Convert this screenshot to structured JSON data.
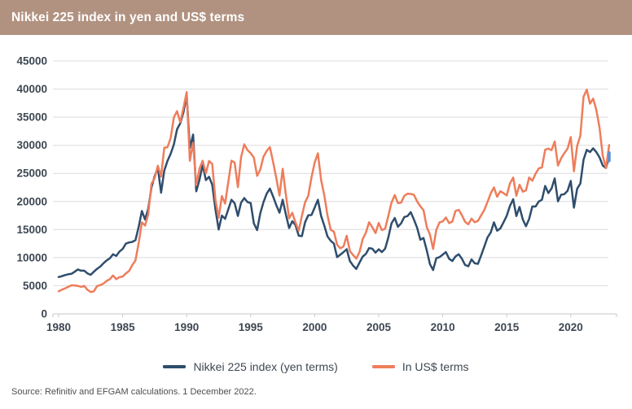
{
  "header": {
    "title": "Nikkei 225 index in yen and US$ terms"
  },
  "source": {
    "text": "Source: Refinitiv and EFGAM calculations. 1 December 2022."
  },
  "colors": {
    "header_bg": "#b19280",
    "header_text": "#ffffff",
    "grid": "#dbdcdd",
    "axis": "#c3c7ca",
    "tick_label": "#3d4752",
    "yen_line": "#2f4d6d",
    "usd_line": "#ee7d5b",
    "end_marker": "#5b8ed6"
  },
  "chart_data": {
    "type": "line",
    "title": "Nikkei 225 index in yen and US$ terms",
    "xlabel": "",
    "ylabel": "",
    "x_start": 1980,
    "x_step": 0.25,
    "xlim": [
      1979.5,
      2023.6
    ],
    "ylim": [
      0,
      45000
    ],
    "x_ticks": [
      1980,
      1985,
      1990,
      1995,
      2000,
      2005,
      2010,
      2015,
      2020
    ],
    "y_ticks": [
      0,
      5000,
      10000,
      15000,
      20000,
      25000,
      30000,
      35000,
      40000,
      45000
    ],
    "grid": "horizontal",
    "legend_position": "bottom",
    "series": [
      {
        "name": "Nikkei 225 index (yen terms)",
        "color": "#2f4d6d",
        "values": [
          6560,
          6700,
          6900,
          7050,
          7120,
          7500,
          7900,
          7680,
          7680,
          7200,
          6950,
          7500,
          8020,
          8400,
          9000,
          9500,
          9890,
          10600,
          10300,
          11100,
          11540,
          12500,
          12700,
          12800,
          13110,
          15500,
          18300,
          16800,
          18700,
          22500,
          24500,
          26000,
          21560,
          25500,
          27200,
          28500,
          30160,
          32840,
          33900,
          35900,
          38920,
          29500,
          31900,
          21800,
          23850,
          26500,
          23800,
          24400,
          22980,
          18500,
          15000,
          17500,
          16920,
          18600,
          20300,
          19700,
          17420,
          19800,
          20600,
          19900,
          19720,
          16100,
          14900,
          17900,
          19870,
          21400,
          22300,
          20900,
          19360,
          18000,
          20300,
          17700,
          15260,
          16500,
          15800,
          13900,
          13840,
          16300,
          17530,
          17600,
          18930,
          20300,
          17400,
          15700,
          13790,
          13000,
          12500,
          10100,
          10540,
          11000,
          11500,
          9400,
          8580,
          8000,
          9100,
          10200,
          10680,
          11700,
          11600,
          10900,
          11490,
          11000,
          11600,
          13600,
          16110,
          17060,
          15500,
          16100,
          17230,
          17400,
          18100,
          16800,
          15310,
          13200,
          13500,
          11300,
          8860,
          7800,
          9900,
          10100,
          10550,
          11000,
          9800,
          9400,
          10230,
          10600,
          9800,
          8700,
          8460,
          9700,
          9000,
          8900,
          10400,
          12000,
          13600,
          14500,
          16290,
          14800,
          15200,
          16300,
          17450,
          19200,
          20400,
          17400,
          19030,
          16800,
          15600,
          16900,
          19110,
          19100,
          20000,
          20300,
          22760,
          21500,
          22300,
          24100,
          20020,
          21200,
          21300,
          21900,
          23660,
          18900,
          22290,
          23190,
          27440,
          29180,
          28790,
          29450,
          28790,
          27820,
          26390,
          25940,
          27970
        ]
      },
      {
        "name": "In US$ terms",
        "color": "#ee7d5b",
        "values": [
          4014,
          4297,
          4548,
          4822,
          5086,
          5058,
          4980,
          4800,
          4971,
          4279,
          3891,
          4013,
          4948,
          5118,
          5392,
          5861,
          6181,
          6831,
          6172,
          6543,
          6639,
          7192,
          7641,
          8673,
          9505,
          12627,
          16279,
          15716,
          17722,
          23138,
          24166,
          26364,
          24423,
          29580,
          29654,
          31306,
          34986,
          36075,
          34135,
          36658,
          39465,
          27245,
          30430,
          22906,
          25808,
          27252,
          25007,
          27215,
          26657,
          20169,
          17126,
          20971,
          19627,
          23452,
          27254,
          26948,
          22552,
          27874,
          30171,
          29146,
          28594,
          27791,
          24551,
          25698,
          27973,
          29000,
          29665,
          27059,
          24200,
          21048,
          25820,
          21211,
          17022,
          17989,
          16248,
          14820,
          17450,
          19861,
          21007,
          24305,
          26910,
          28578,
          23802,
          21079,
          17539,
          14960,
          14617,
          12307,
          11667,
          11992,
          13895,
          11172,
          10455,
          9830,
          10995,
          13324,
          14472,
          16312,
          15431,
          14368,
          16174,
          14906,
          15153,
          17451,
          19796,
          21144,
          19714,
          19784,
          20994,
          21381,
          21337,
          21182,
          20000,
          19140,
          18467,
          15458,
          14117,
          11540,
          14953,
          16272,
          16449,
          17150,
          16147,
          16421,
          18313,
          18518,
          17543,
          16383,
          15930,
          16945,
          16312,
          16544,
          17534,
          18510,
          19919,
          21454,
          22496,
          20834,
          21822,
          21486,
          21085,
          23200,
          24245,
          21025,
          22994,
          21750,
          21961,
          24262,
          23683,
          24951,
          25892,
          26050,
          29205,
          29410,
          29131,
          30655,
          26390,
          27693,
          28597,
          29403,
          31474,
          25375,
          29926,
          31720,
          38630,
          39900,
          37400,
          38300,
          36300,
          33064,
          28137,
          25940,
          30042
        ]
      }
    ],
    "end_marker": {
      "series": 0,
      "color": "#5b8ed6"
    }
  }
}
